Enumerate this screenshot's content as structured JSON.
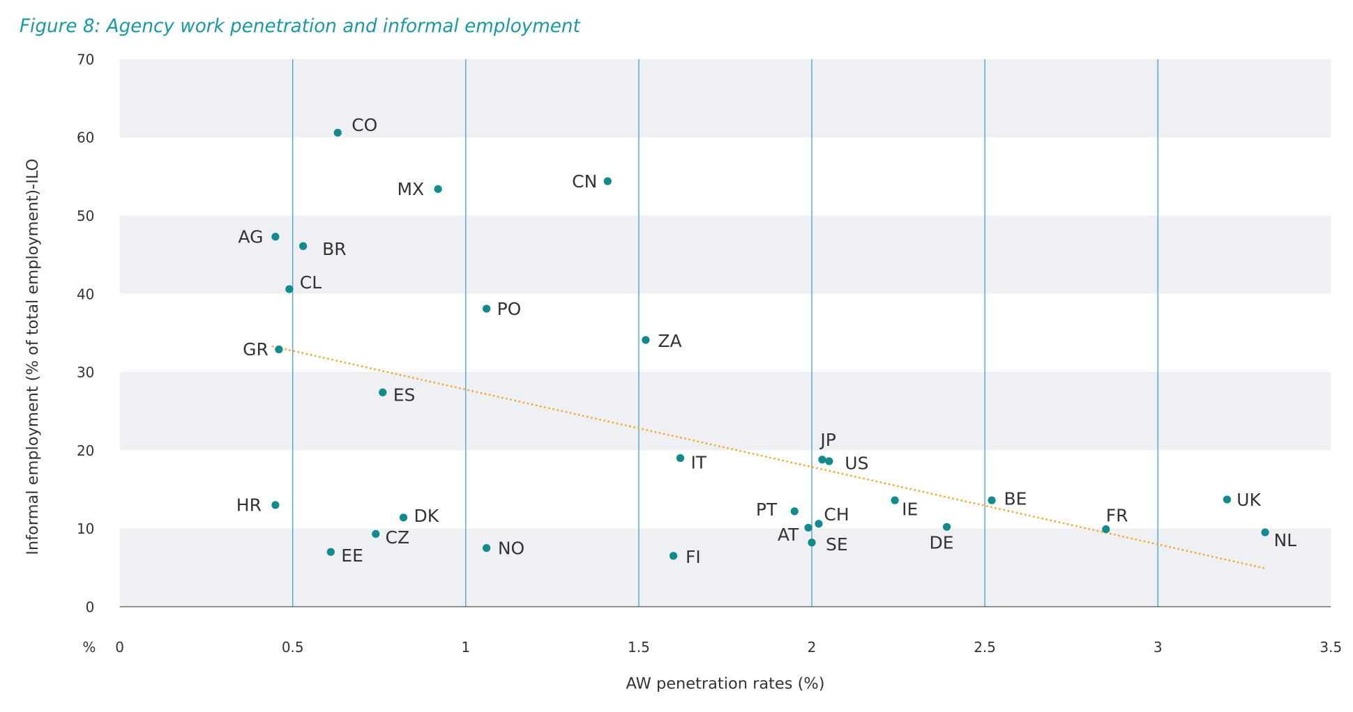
{
  "chart_data": {
    "type": "scatter",
    "title": "Figure 8: Agency work penetration and informal employment",
    "xlabel": "AW penetration rates  (%)",
    "ylabel": "Informal employment (% of total employment)-ILO",
    "x_unit_label": "%",
    "xlim": [
      0,
      3.5
    ],
    "ylim": [
      0,
      70
    ],
    "x_ticks": [
      "0",
      "0.5",
      "1",
      "1.5",
      "2",
      "2.5",
      "3",
      "3.5"
    ],
    "x_tick_values": [
      0,
      0.5,
      1,
      1.5,
      2,
      2.5,
      3,
      3.5
    ],
    "y_ticks": [
      "0",
      "10",
      "20",
      "30",
      "40",
      "50",
      "60",
      "70"
    ],
    "y_tick_values": [
      0,
      10,
      20,
      30,
      40,
      50,
      60,
      70
    ],
    "grid": "alternating horizontal bands, vertical lines at x ticks",
    "colors": {
      "points": "#138a8c",
      "trend": "#f5a623",
      "band": "#eff0f4",
      "vgrid": "#3b9bd6",
      "title": "#1a9aa0"
    },
    "points": [
      {
        "label": "CO",
        "x": 0.63,
        "y": 60.6
      },
      {
        "label": "MX",
        "x": 0.92,
        "y": 53.4
      },
      {
        "label": "CN",
        "x": 1.41,
        "y": 54.4
      },
      {
        "label": "AG",
        "x": 0.45,
        "y": 47.3
      },
      {
        "label": "BR",
        "x": 0.53,
        "y": 46.1
      },
      {
        "label": "CL",
        "x": 0.49,
        "y": 40.6
      },
      {
        "label": "PO",
        "x": 1.06,
        "y": 38.1
      },
      {
        "label": "ZA",
        "x": 1.52,
        "y": 34.1
      },
      {
        "label": "GR",
        "x": 0.46,
        "y": 32.9
      },
      {
        "label": "ES",
        "x": 0.76,
        "y": 27.4
      },
      {
        "label": "JP",
        "x": 2.03,
        "y": 18.8
      },
      {
        "label": "US",
        "x": 2.05,
        "y": 18.6
      },
      {
        "label": "IT",
        "x": 1.62,
        "y": 19.0
      },
      {
        "label": "HR",
        "x": 0.45,
        "y": 13.0
      },
      {
        "label": "DK",
        "x": 0.82,
        "y": 11.4
      },
      {
        "label": "CZ",
        "x": 0.74,
        "y": 9.3
      },
      {
        "label": "EE",
        "x": 0.61,
        "y": 7.0
      },
      {
        "label": "NO",
        "x": 1.06,
        "y": 7.5
      },
      {
        "label": "FI",
        "x": 1.6,
        "y": 6.5
      },
      {
        "label": "PT",
        "x": 1.95,
        "y": 12.2
      },
      {
        "label": "CH",
        "x": 2.02,
        "y": 10.6
      },
      {
        "label": "AT",
        "x": 1.99,
        "y": 10.1
      },
      {
        "label": "SE",
        "x": 2.0,
        "y": 8.2
      },
      {
        "label": "IE",
        "x": 2.24,
        "y": 13.6
      },
      {
        "label": "DE",
        "x": 2.39,
        "y": 10.2
      },
      {
        "label": "BE",
        "x": 2.52,
        "y": 13.6
      },
      {
        "label": "FR",
        "x": 2.85,
        "y": 9.9
      },
      {
        "label": "UK",
        "x": 3.2,
        "y": 13.7
      },
      {
        "label": "NL",
        "x": 3.31,
        "y": 9.5
      }
    ],
    "trendline": {
      "style": "dotted",
      "x": [
        0.44,
        3.31
      ],
      "y": [
        33.3,
        4.9
      ]
    }
  }
}
